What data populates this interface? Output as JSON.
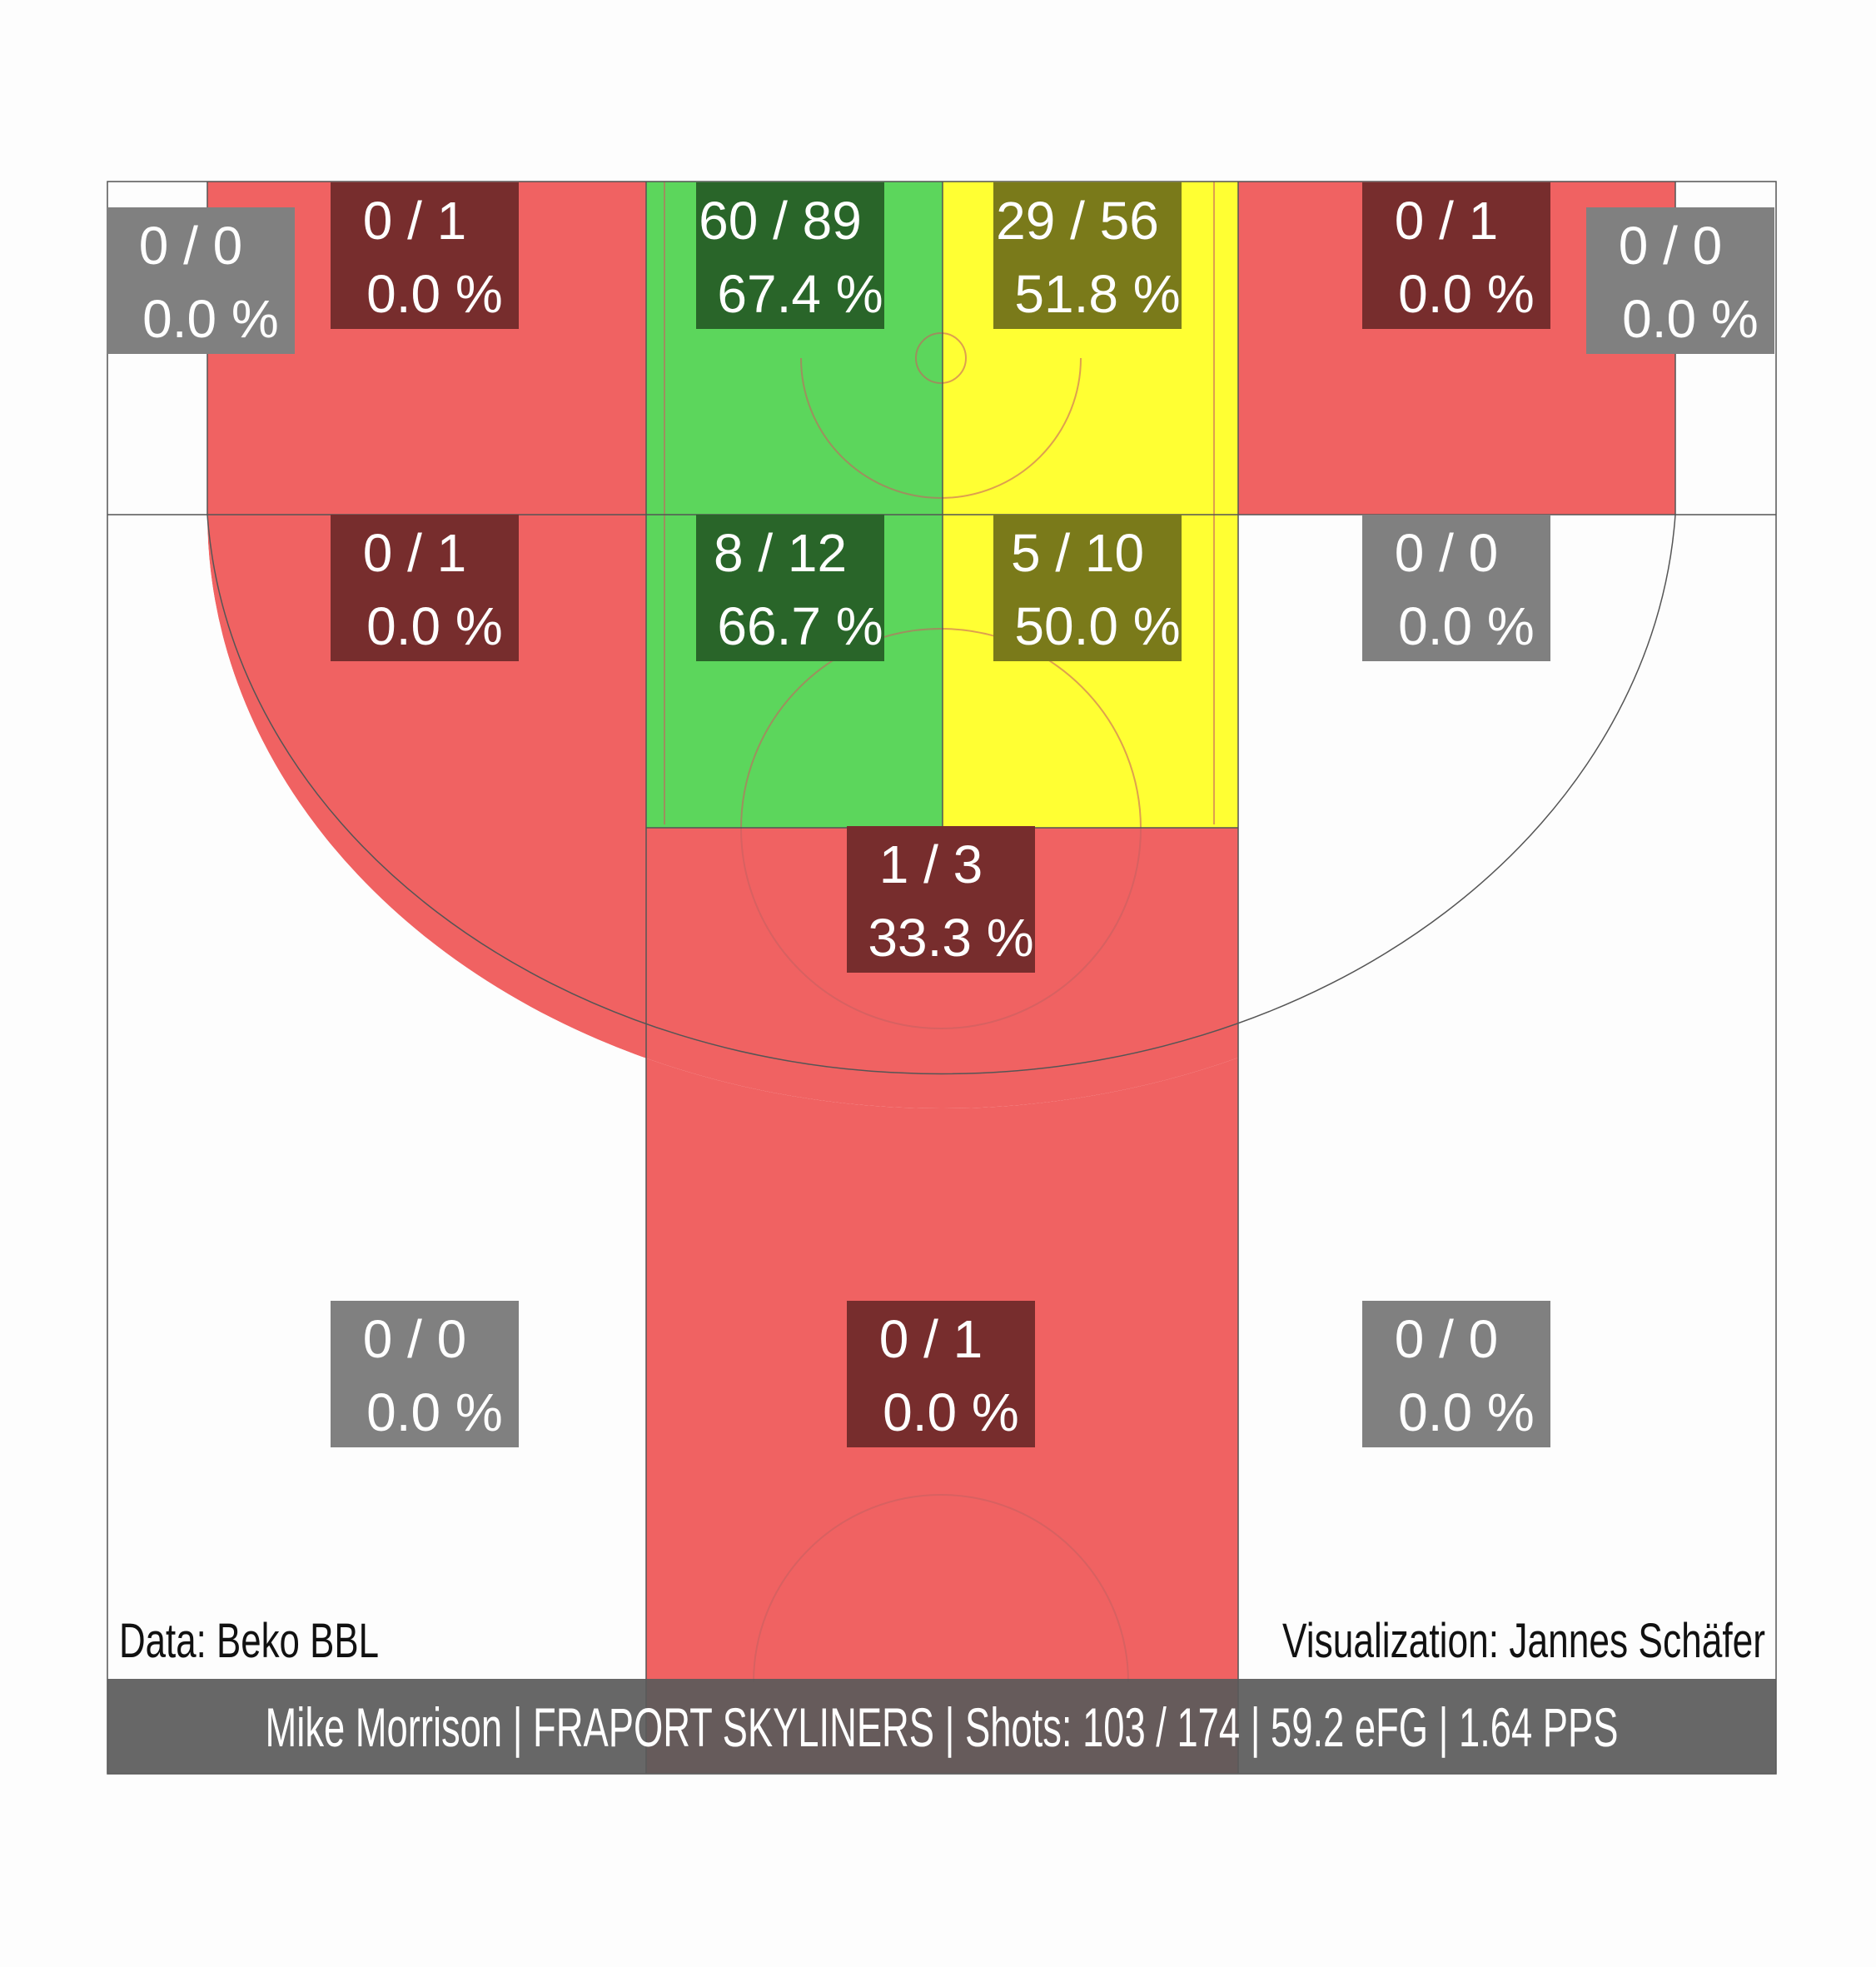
{
  "chart_data": {
    "type": "heatmap",
    "title": "",
    "xlabel": "",
    "ylabel": "",
    "grid": false,
    "zones": [
      {
        "id": "corner-left",
        "made": 0,
        "attempts": 0,
        "label_made_att": "0 / 0",
        "label_pct": "0.0 %",
        "pct": 0.0
      },
      {
        "id": "wing-left-three-top",
        "made": 0,
        "attempts": 1,
        "label_made_att": "0 / 1",
        "label_pct": "0.0 %",
        "pct": 0.0
      },
      {
        "id": "paint-left-top",
        "made": 60,
        "attempts": 89,
        "label_made_att": "60 / 89",
        "label_pct": "67.4 %",
        "pct": 67.4
      },
      {
        "id": "paint-right-top",
        "made": 29,
        "attempts": 56,
        "label_made_att": "29 / 56",
        "label_pct": "51.8 %",
        "pct": 51.8
      },
      {
        "id": "wing-right-three-top",
        "made": 0,
        "attempts": 1,
        "label_made_att": "0 / 1",
        "label_pct": "0.0 %",
        "pct": 0.0
      },
      {
        "id": "corner-right",
        "made": 0,
        "attempts": 0,
        "label_made_att": "0 / 0",
        "label_pct": "0.0 %",
        "pct": 0.0
      },
      {
        "id": "mid-left",
        "made": 0,
        "attempts": 1,
        "label_made_att": "0 / 1",
        "label_pct": "0.0 %",
        "pct": 0.0
      },
      {
        "id": "paint-left-mid",
        "made": 8,
        "attempts": 12,
        "label_made_att": "8 / 12",
        "label_pct": "66.7 %",
        "pct": 66.7
      },
      {
        "id": "paint-right-mid",
        "made": 5,
        "attempts": 10,
        "label_made_att": "5 / 10",
        "label_pct": "50.0 %",
        "pct": 50.0
      },
      {
        "id": "mid-right",
        "made": 0,
        "attempts": 0,
        "label_made_att": "0 / 0",
        "label_pct": "0.0 %",
        "pct": 0.0
      },
      {
        "id": "top-of-key",
        "made": 1,
        "attempts": 3,
        "label_made_att": "1 / 3",
        "label_pct": "33.3 %",
        "pct": 33.3
      },
      {
        "id": "three-left",
        "made": 0,
        "attempts": 0,
        "label_made_att": "0 / 0",
        "label_pct": "0.0 %",
        "pct": 0.0
      },
      {
        "id": "three-center",
        "made": 0,
        "attempts": 1,
        "label_made_att": "0 / 1",
        "label_pct": "0.0 %",
        "pct": 0.0
      },
      {
        "id": "three-right",
        "made": 0,
        "attempts": 0,
        "label_made_att": "0 / 0",
        "label_pct": "0.0 %",
        "pct": 0.0
      }
    ],
    "colors": {
      "cold": "#f06262",
      "hot": "#5cd65c",
      "average": "#ffff33",
      "empty": "#fdfdfd",
      "label_cold": "#772d2d",
      "label_hot": "#296529",
      "label_average": "#7a7a1a",
      "label_empty": "#808080",
      "footer_bg": "#666666",
      "text": "#ffffff"
    }
  },
  "source_note": "Data: Beko BBL",
  "credit_note": "Visualization: Jannes Schäfer",
  "footer": "Mike Morrison | FRAPORT SKYLINERS | Shots: 103 / 174 | 59.2 eFG | 1.64 PPS"
}
